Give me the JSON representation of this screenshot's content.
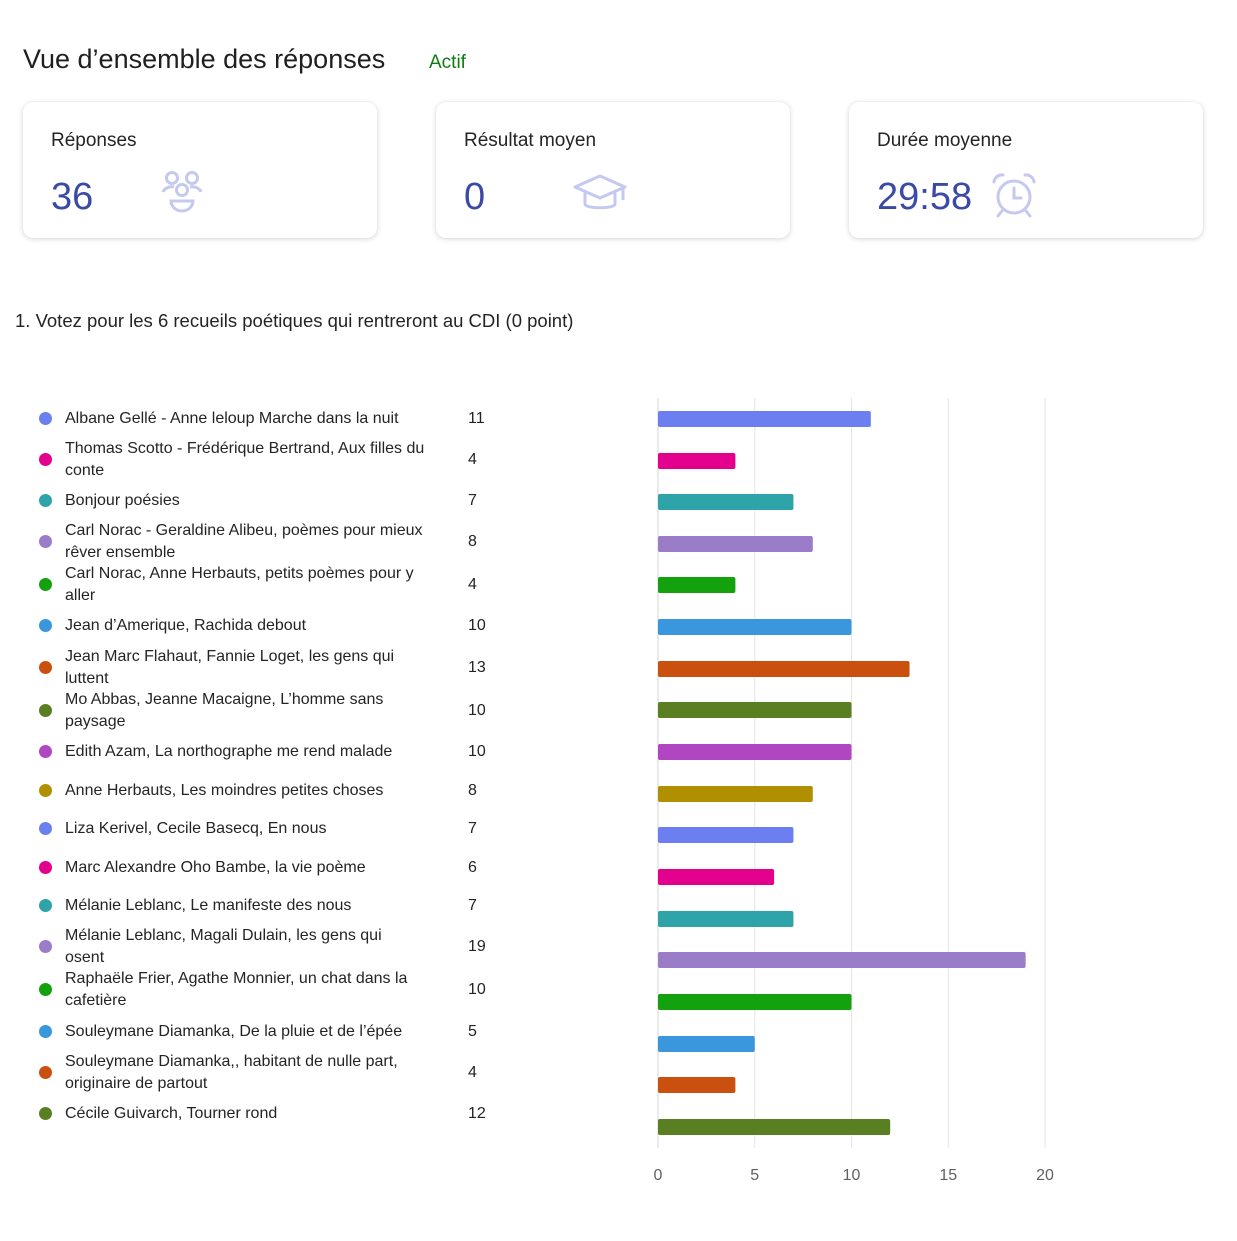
{
  "header": {
    "title": "Vue d’ensemble des réponses",
    "status": "Actif"
  },
  "cards": [
    {
      "label": "Réponses",
      "value": "36",
      "icon": "people-icon"
    },
    {
      "label": "Résultat moyen",
      "value": "0",
      "icon": "graduation-cap-icon"
    },
    {
      "label": "Durée moyenne",
      "value": "29:58",
      "icon": "alarm-clock-icon"
    }
  ],
  "question": {
    "title": "1. Votez pour les 6 recueils poétiques qui rentreront au CDI (0 point)"
  },
  "colors": {
    "accent": "#3b4aa6",
    "status": "#107c10",
    "icon": "#c5c9ef"
  },
  "chart_data": {
    "type": "bar",
    "orientation": "horizontal",
    "categories": [
      "Albane Gellé - Anne leloup Marche dans la nuit",
      "Thomas Scotto - Frédérique Bertrand, Aux filles du conte",
      "Bonjour poésies",
      "Carl Norac - Geraldine Alibeu, poèmes pour mieux rêver ensemble",
      "Carl Norac, Anne Herbauts, petits poèmes pour y aller",
      "Jean d’Amerique,  Rachida debout",
      "Jean Marc Flahaut, Fannie Loget, les gens qui luttent",
      "Mo Abbas, Jeanne Macaigne, L’homme sans paysage",
      "Edith Azam, La northographe me rend malade",
      "Anne Herbauts, Les moindres petites choses",
      "Liza Kerivel, Cecile Basecq, En nous",
      "Marc Alexandre Oho Bambe, la vie poème",
      "Mélanie Leblanc, Le manifeste des nous",
      "Mélanie Leblanc, Magali Dulain, les gens qui osent",
      "Raphaële Frier, Agathe Monnier, un chat dans la cafetière",
      "Souleymane Diamanka, De la pluie et de l’épée",
      "Souleymane Diamanka,, habitant de nulle part, originaire de partout",
      "Cécile Guivarch, Tourner rond"
    ],
    "values": [
      11,
      4,
      7,
      8,
      4,
      10,
      13,
      10,
      10,
      8,
      7,
      6,
      7,
      19,
      10,
      5,
      4,
      12
    ],
    "colors": [
      "#6b7ff0",
      "#e3008c",
      "#2ea3a8",
      "#9b7cc8",
      "#13a10e",
      "#3a96dd",
      "#ca5010",
      "#5a7f23",
      "#b146c2",
      "#b19000",
      "#6b7ff0",
      "#e3008c",
      "#2ea3a8",
      "#9b7cc8",
      "#13a10e",
      "#3a96dd",
      "#ca5010",
      "#5a7f23"
    ],
    "xlim": [
      0,
      20
    ],
    "xticks": [
      "0",
      "5",
      "10",
      "15",
      "20"
    ],
    "grid": true,
    "legend": "left"
  }
}
